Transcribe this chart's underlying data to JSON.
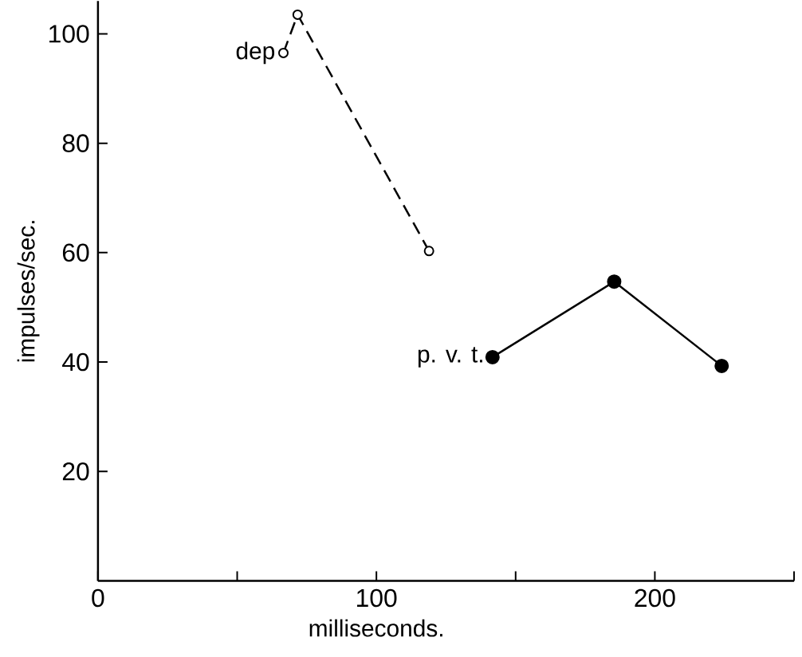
{
  "chart_data": {
    "type": "line",
    "xlabel": "milliseconds.",
    "ylabel": "impulses/sec.",
    "xlim": [
      0,
      250
    ],
    "ylim": [
      0,
      106
    ],
    "xticks": [
      0,
      {
        "value": 50,
        "label": null
      },
      100,
      {
        "value": 150,
        "label": null
      },
      200,
      {
        "value": 250,
        "label": null
      }
    ],
    "yticks": [
      20,
      40,
      60,
      80,
      100
    ],
    "grid": false,
    "legend": false,
    "marker": "circle",
    "series": [
      {
        "name": "dep",
        "color": "#000000",
        "line_style": "dashed",
        "x": [
          66.6,
          71.7,
          118.9
        ],
        "values": [
          96.5,
          103.5,
          60.3
        ]
      },
      {
        "name": "p. v. t.",
        "color": "#000000",
        "line_style": "solid",
        "x": [
          141.7,
          185.4,
          224
        ],
        "values": [
          40.9,
          54.7,
          39.3
        ]
      }
    ]
  }
}
